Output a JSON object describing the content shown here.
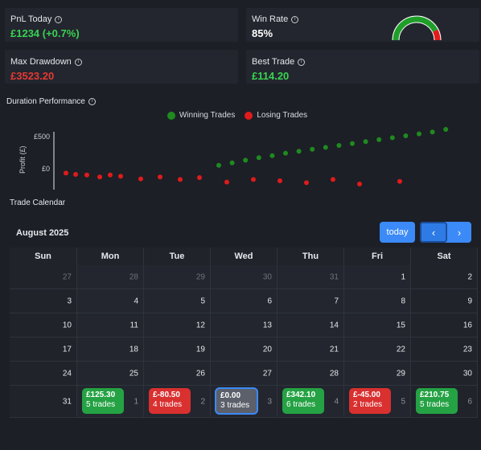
{
  "stats": {
    "pnl_today": {
      "label": "PnL Today",
      "value": "£1234 (+0.7%)",
      "color": "#39d353"
    },
    "win_rate": {
      "label": "Win Rate",
      "value": "85%",
      "gauge_fraction": 0.85
    },
    "max_drawdown": {
      "label": "Max Drawdown",
      "value": "£3523.20",
      "color": "#e53935"
    },
    "best_trade": {
      "label": "Best Trade",
      "value": "£114.20",
      "color": "#39d353"
    },
    "info_icon": "i"
  },
  "duration": {
    "title": "Duration Performance",
    "legend": {
      "winning": "Winning Trades",
      "losing": "Losing Trades"
    },
    "colors": {
      "win": "#1f8a1f",
      "loss": "#e01b1b"
    },
    "chart_data": {
      "type": "scatter",
      "title": "Duration Performance",
      "ylabel": "Profit (£)",
      "yticks": [
        "£500",
        "£0"
      ],
      "series": [
        {
          "name": "Winning Trades",
          "x": [
            1,
            2,
            3,
            4,
            5,
            6,
            7,
            8,
            9,
            10,
            11,
            12,
            13,
            14,
            15,
            16,
            17,
            18
          ],
          "y": [
            40,
            80,
            120,
            160,
            190,
            230,
            260,
            290,
            320,
            350,
            380,
            410,
            440,
            470,
            500,
            530,
            560,
            600
          ]
        },
        {
          "name": "Losing Trades",
          "x": [
            1,
            2,
            3,
            4,
            5,
            6,
            7,
            8,
            9,
            10,
            11,
            12,
            13,
            14,
            15,
            16,
            17
          ],
          "y": [
            -80,
            -100,
            -110,
            -140,
            -110,
            -130,
            -170,
            -140,
            -180,
            -150,
            -220,
            -180,
            -200,
            -230,
            -180,
            -250,
            -210
          ]
        }
      ]
    }
  },
  "calendar": {
    "section_title": "Trade Calendar",
    "month": "August 2025",
    "today_label": "today",
    "prev_label": "‹",
    "next_label": "›",
    "weekdays": [
      "Sun",
      "Mon",
      "Tue",
      "Wed",
      "Thu",
      "Fri",
      "Sat"
    ],
    "weeks": [
      [
        {
          "d": "27",
          "out": true
        },
        {
          "d": "28",
          "out": true
        },
        {
          "d": "29",
          "out": true
        },
        {
          "d": "30",
          "out": true
        },
        {
          "d": "31",
          "out": true
        },
        {
          "d": "1"
        },
        {
          "d": "2"
        }
      ],
      [
        {
          "d": "3"
        },
        {
          "d": "4"
        },
        {
          "d": "5"
        },
        {
          "d": "6"
        },
        {
          "d": "7"
        },
        {
          "d": "8"
        },
        {
          "d": "9"
        }
      ],
      [
        {
          "d": "10"
        },
        {
          "d": "11"
        },
        {
          "d": "12"
        },
        {
          "d": "13"
        },
        {
          "d": "14"
        },
        {
          "d": "15"
        },
        {
          "d": "16"
        }
      ],
      [
        {
          "d": "17"
        },
        {
          "d": "18"
        },
        {
          "d": "19"
        },
        {
          "d": "20"
        },
        {
          "d": "21"
        },
        {
          "d": "22"
        },
        {
          "d": "23"
        }
      ],
      [
        {
          "d": "24"
        },
        {
          "d": "25"
        },
        {
          "d": "26"
        },
        {
          "d": "27"
        },
        {
          "d": "28"
        },
        {
          "d": "29"
        },
        {
          "d": "30"
        }
      ]
    ],
    "last_week": [
      {
        "d": "31"
      },
      {
        "d": "1",
        "out": true,
        "pill": {
          "amount": "£125.30",
          "count": "5 trades",
          "kind": "green"
        }
      },
      {
        "d": "2",
        "out": true,
        "pill": {
          "amount": "£-80.50",
          "count": "4 trades",
          "kind": "red"
        }
      },
      {
        "d": "3",
        "out": true,
        "pill": {
          "amount": "£0.00",
          "count": "3 trades",
          "kind": "neutral"
        }
      },
      {
        "d": "4",
        "out": true,
        "pill": {
          "amount": "£342.10",
          "count": "6 trades",
          "kind": "green"
        }
      },
      {
        "d": "5",
        "out": true,
        "pill": {
          "amount": "£-45.00",
          "count": "2 trades",
          "kind": "red"
        }
      },
      {
        "d": "6",
        "out": true,
        "pill": {
          "amount": "£210.75",
          "count": "5 trades",
          "kind": "green"
        }
      }
    ]
  }
}
